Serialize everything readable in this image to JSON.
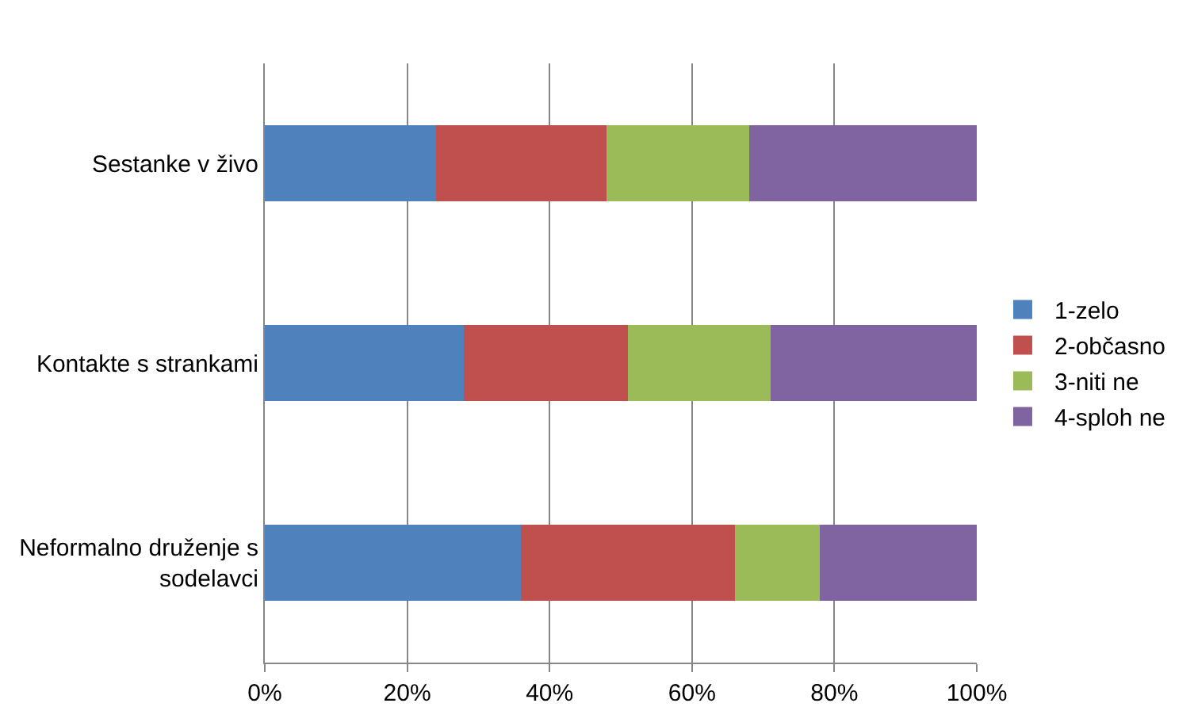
{
  "chart_data": {
    "type": "bar",
    "orientation": "horizontal",
    "stacked": true,
    "categories": [
      "Sestanke v živo",
      "Kontakte s strankami",
      "Neformalno druženje s sodelavci"
    ],
    "series": [
      {
        "name": "1-zelo",
        "color": "#4f81bd",
        "values": [
          24,
          28,
          36
        ]
      },
      {
        "name": "2-občasno",
        "color": "#c0504d",
        "values": [
          24,
          23,
          30
        ]
      },
      {
        "name": "3-niti ne",
        "color": "#9bbb59",
        "values": [
          20,
          20,
          12
        ]
      },
      {
        "name": "4-sploh ne",
        "color": "#8064a2",
        "values": [
          32,
          29,
          22
        ]
      }
    ],
    "xlim": [
      0,
      100
    ],
    "xticks": [
      {
        "value": 0,
        "label": "0%"
      },
      {
        "value": 20,
        "label": "20%"
      },
      {
        "value": 40,
        "label": "40%"
      },
      {
        "value": 60,
        "label": "60%"
      },
      {
        "value": 80,
        "label": "80%"
      },
      {
        "value": 100,
        "label": "100%"
      }
    ],
    "grid": "x",
    "legend": "right"
  }
}
